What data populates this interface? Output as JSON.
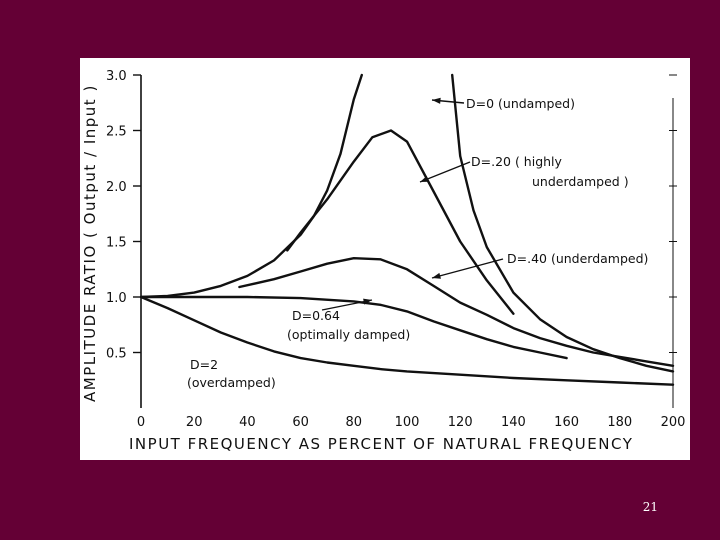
{
  "slide": {
    "page_number": "21"
  },
  "chart_data": {
    "type": "line",
    "xlabel": "INPUT FREQUENCY AS PERCENT OF NATURAL FREQUENCY",
    "ylabel": "AMPLITUDE RATIO ( Output / Input )",
    "xlim": [
      0,
      200
    ],
    "ylim": [
      0,
      3.0
    ],
    "x_ticks": [
      "0",
      "20",
      "40",
      "60",
      "80",
      "100",
      "120",
      "140",
      "160",
      "180",
      "200"
    ],
    "y_ticks": [
      "0.5",
      "1.0",
      "1.5",
      "2.0",
      "2.5",
      "3.0"
    ],
    "grid": false,
    "series": [
      {
        "id": "d0",
        "label_lines": [
          "D=0 (undamped)"
        ],
        "segments": [
          [
            [
              0,
              1.0
            ],
            [
              10,
              1.01
            ],
            [
              20,
              1.04
            ],
            [
              30,
              1.1
            ],
            [
              40,
              1.19
            ],
            [
              50,
              1.33
            ],
            [
              60,
              1.56
            ],
            [
              65,
              1.73
            ],
            [
              70,
              1.96
            ],
            [
              75,
              2.29
            ],
            [
              80,
              2.78
            ],
            [
              83,
              3.0
            ]
          ],
          [
            [
              117,
              3.0
            ],
            [
              120,
              2.27
            ],
            [
              125,
              1.78
            ],
            [
              130,
              1.45
            ],
            [
              140,
              1.04
            ],
            [
              150,
              0.8
            ],
            [
              160,
              0.64
            ],
            [
              170,
              0.53
            ],
            [
              180,
              0.45
            ],
            [
              190,
              0.38
            ],
            [
              200,
              0.33
            ]
          ]
        ]
      },
      {
        "id": "d20",
        "label_lines": [
          "D=.20 ( highly",
          "underdamped )"
        ],
        "points": [
          [
            55,
            1.42
          ],
          [
            60,
            1.58
          ],
          [
            70,
            1.88
          ],
          [
            80,
            2.22
          ],
          [
            87,
            2.44
          ],
          [
            94,
            2.5
          ],
          [
            100,
            2.4
          ],
          [
            110,
            1.95
          ],
          [
            120,
            1.5
          ],
          [
            130,
            1.15
          ],
          [
            140,
            0.85
          ]
        ]
      },
      {
        "id": "d40",
        "label_lines": [
          "D=.40 (underdamped)"
        ],
        "points": [
          [
            37,
            1.09
          ],
          [
            50,
            1.16
          ],
          [
            60,
            1.23
          ],
          [
            70,
            1.3
          ],
          [
            80,
            1.35
          ],
          [
            90,
            1.34
          ],
          [
            100,
            1.25
          ],
          [
            110,
            1.1
          ],
          [
            120,
            0.95
          ],
          [
            130,
            0.84
          ],
          [
            140,
            0.72
          ],
          [
            150,
            0.63
          ],
          [
            160,
            0.56
          ],
          [
            170,
            0.5
          ],
          [
            180,
            0.46
          ],
          [
            190,
            0.42
          ],
          [
            200,
            0.38
          ]
        ]
      },
      {
        "id": "d64",
        "label_lines": [
          "D=0.64",
          "(optimally damped)"
        ],
        "points": [
          [
            0,
            1.0
          ],
          [
            20,
            1.0
          ],
          [
            40,
            1.0
          ],
          [
            60,
            0.99
          ],
          [
            80,
            0.96
          ],
          [
            90,
            0.93
          ],
          [
            100,
            0.87
          ],
          [
            110,
            0.78
          ],
          [
            120,
            0.7
          ],
          [
            130,
            0.62
          ],
          [
            140,
            0.55
          ],
          [
            150,
            0.5
          ],
          [
            160,
            0.45
          ]
        ]
      },
      {
        "id": "d2",
        "label_lines": [
          "D=2",
          "(overdamped)"
        ],
        "points": [
          [
            0,
            1.0
          ],
          [
            10,
            0.9
          ],
          [
            20,
            0.79
          ],
          [
            30,
            0.68
          ],
          [
            40,
            0.59
          ],
          [
            50,
            0.51
          ],
          [
            60,
            0.45
          ],
          [
            70,
            0.41
          ],
          [
            80,
            0.38
          ],
          [
            90,
            0.35
          ],
          [
            100,
            0.33
          ],
          [
            120,
            0.3
          ],
          [
            140,
            0.27
          ],
          [
            160,
            0.25
          ],
          [
            180,
            0.23
          ],
          [
            200,
            0.21
          ]
        ]
      }
    ]
  }
}
